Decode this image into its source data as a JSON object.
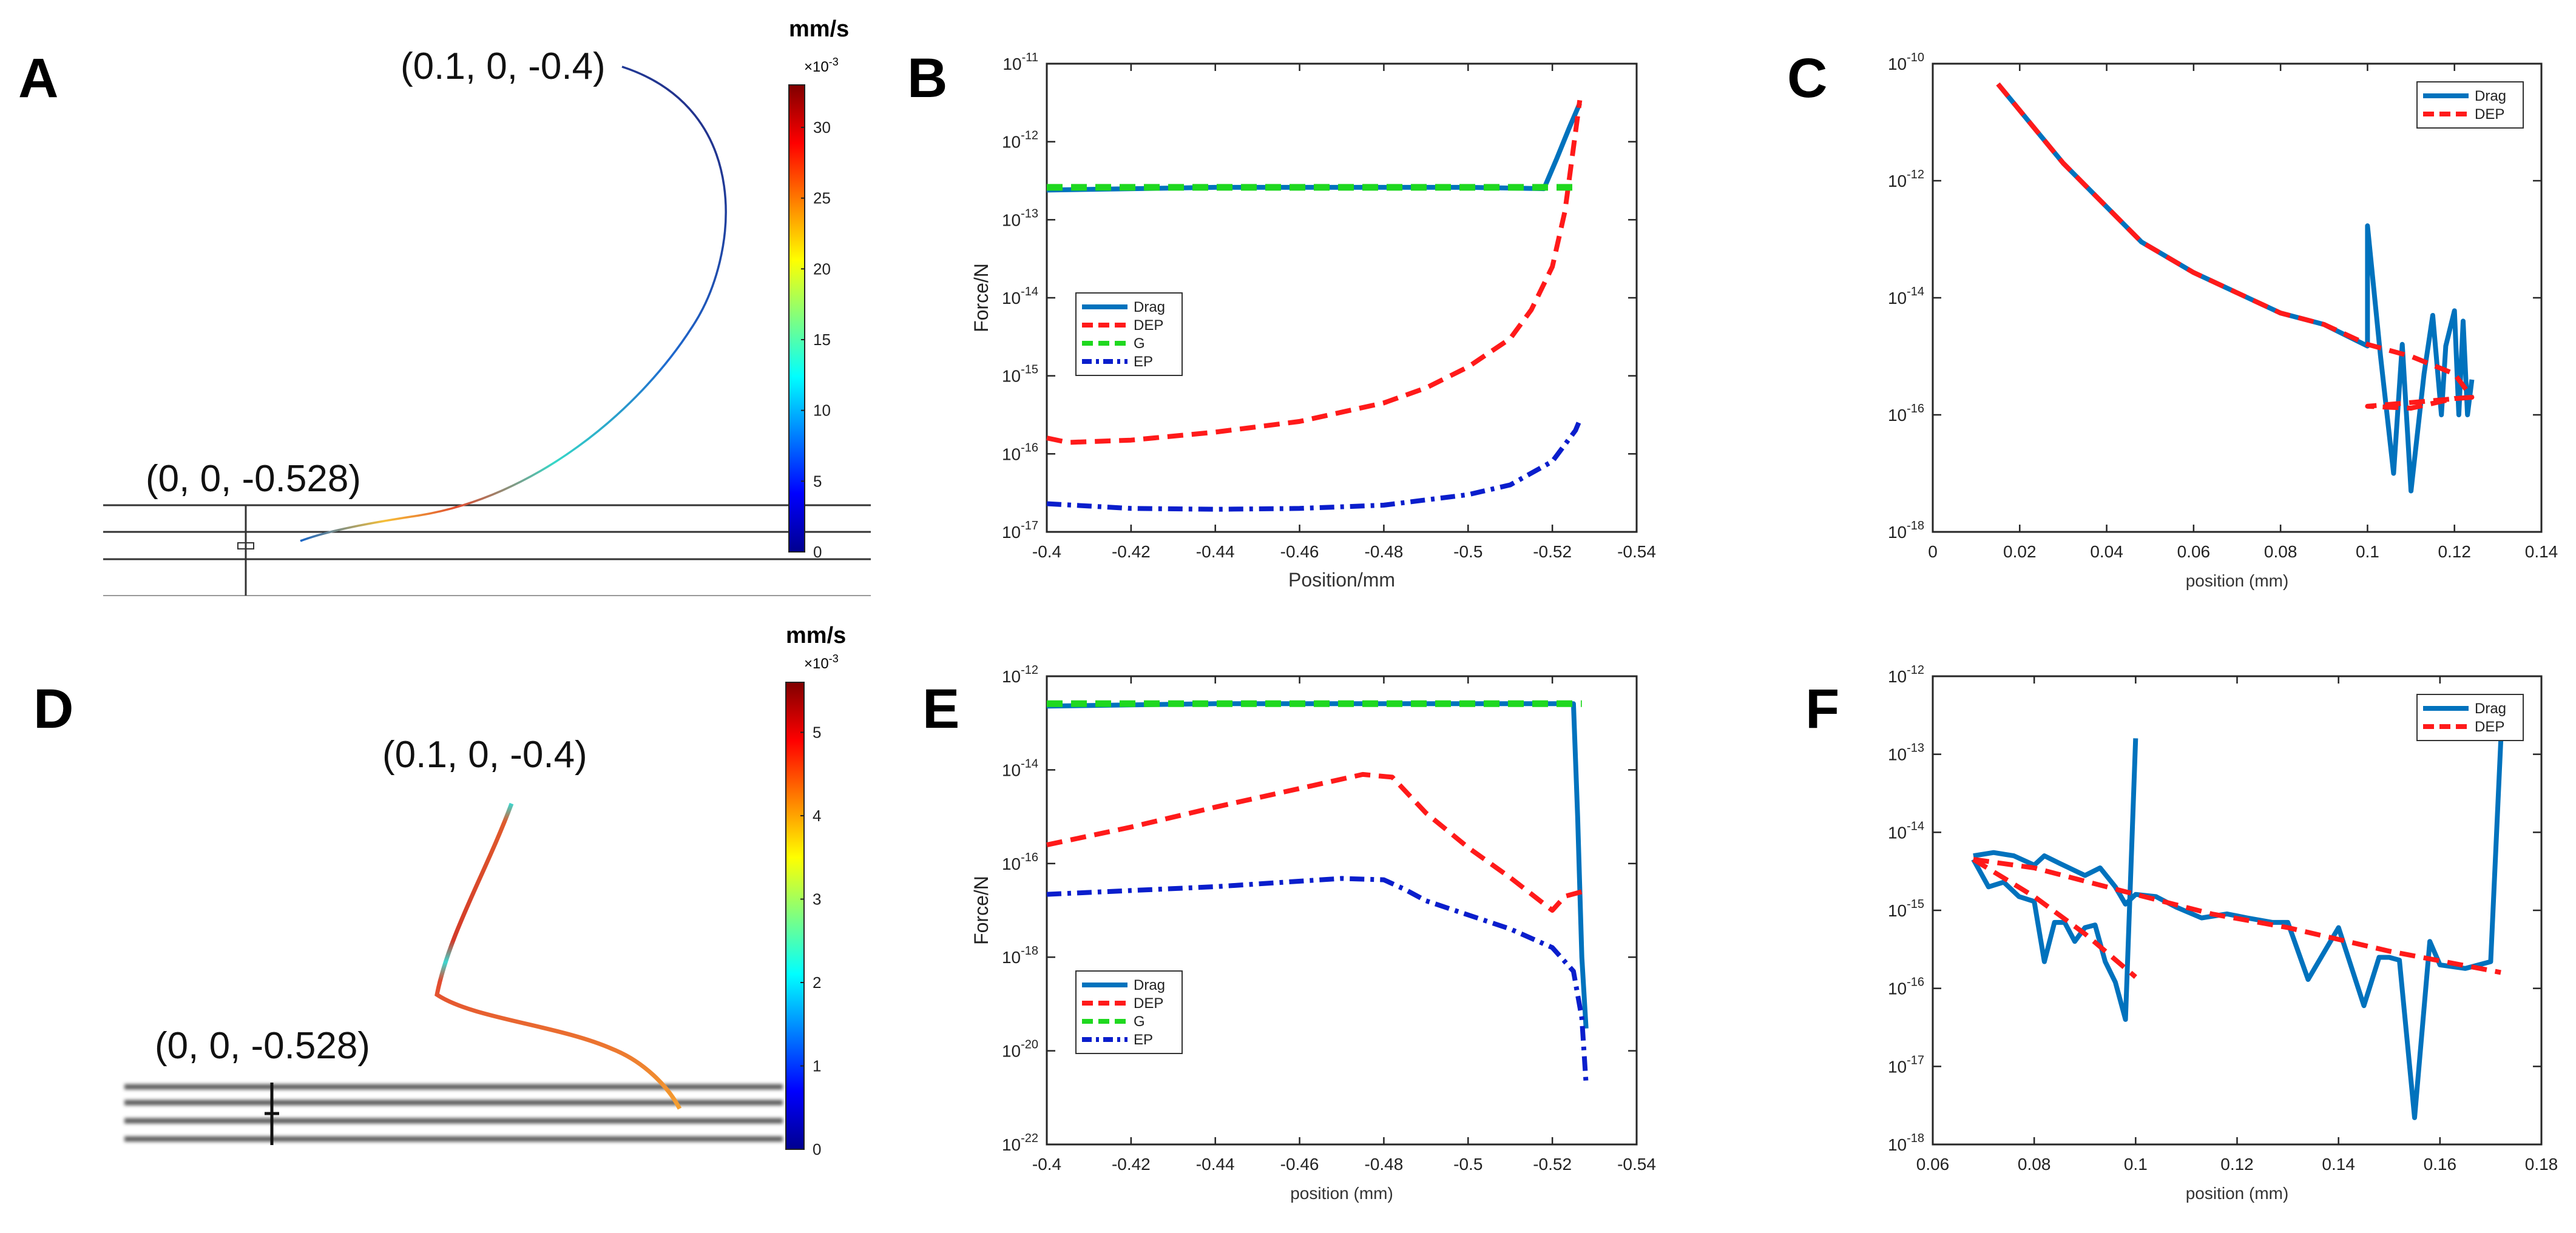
{
  "panels": {
    "A": {
      "letter": "A",
      "start_label": "(0.1, 0, -0.4)",
      "end_label": "(0, 0, -0.528)",
      "colorbar": {
        "unit": "mm/s",
        "scale": "×10",
        "scale_exp": "-3",
        "ticks": [
          "0",
          "5",
          "10",
          "15",
          "20",
          "25",
          "30"
        ],
        "max": 33
      }
    },
    "D": {
      "letter": "D",
      "start_label": "(0.1, 0, -0.4)",
      "end_label": "(0, 0, -0.528)",
      "colorbar": {
        "unit": "mm/s",
        "scale": "×10",
        "scale_exp": "-3",
        "ticks": [
          "0",
          "1",
          "2",
          "3",
          "4",
          "5"
        ],
        "max": 5.6
      }
    }
  },
  "colors": {
    "drag": "#0072BD",
    "dep": "#FF1A1A",
    "g": "#1FD81F",
    "ep": "#0A1ECC",
    "axis": "#262626",
    "grid_line": "#333333"
  },
  "chart_data": [
    {
      "panel": "B",
      "type": "line",
      "xlabel": "Position/mm",
      "ylabel": "Force/N",
      "xlim": [
        -0.4,
        -0.54
      ],
      "x_ticks": [
        "-0.4",
        "-0.42",
        "-0.44",
        "-0.46",
        "-0.48",
        "-0.5",
        "-0.52",
        "-0.54"
      ],
      "ylog": [
        -17,
        -11
      ],
      "y_tick_exps": [
        "-17",
        "-16",
        "-15",
        "-14",
        "-13",
        "-12",
        "-11"
      ],
      "legend": "left",
      "series": [
        {
          "name": "Drag",
          "style": "solid",
          "color": "#0072BD",
          "x": [
            -0.4,
            -0.44,
            -0.48,
            -0.5,
            -0.518,
            -0.521,
            -0.524,
            -0.5265
          ],
          "y": [
            2.4e-13,
            2.6e-13,
            2.6e-13,
            2.6e-13,
            2.5e-13,
            6e-13,
            1.5e-12,
            3.1e-12
          ]
        },
        {
          "name": "DEP",
          "style": "dashed",
          "color": "#FF1A1A",
          "x": [
            -0.4,
            -0.405,
            -0.42,
            -0.44,
            -0.46,
            -0.48,
            -0.49,
            -0.5,
            -0.51,
            -0.515,
            -0.52,
            -0.523,
            -0.5265
          ],
          "y": [
            1.6e-16,
            1.4e-16,
            1.5e-16,
            1.9e-16,
            2.6e-16,
            4.5e-16,
            7e-16,
            1.3e-15,
            3e-15,
            7e-15,
            2.5e-14,
            1.3e-13,
            3.4e-12
          ]
        },
        {
          "name": "G",
          "style": "dashed",
          "color": "#1FD81F",
          "x": [
            -0.4,
            -0.5265
          ],
          "y": [
            2.6e-13,
            2.6e-13
          ]
        },
        {
          "name": "EP",
          "style": "dashdot",
          "color": "#0A1ECC",
          "x": [
            -0.4,
            -0.42,
            -0.44,
            -0.46,
            -0.48,
            -0.5,
            -0.51,
            -0.52,
            -0.5255,
            -0.5265
          ],
          "y": [
            2.3e-17,
            2e-17,
            1.95e-17,
            2e-17,
            2.2e-17,
            3e-17,
            4e-17,
            8e-17,
            2e-16,
            2.7e-16
          ]
        }
      ]
    },
    {
      "panel": "C",
      "type": "line",
      "xlabel": "position (mm)",
      "ylabel": "",
      "xlim": [
        0,
        0.14
      ],
      "x_ticks": [
        "0",
        "0.02",
        "0.04",
        "0.06",
        "0.08",
        "0.1",
        "0.12",
        "0.14"
      ],
      "ylog": [
        -18,
        -10
      ],
      "y_tick_exps": [
        "-18",
        "-16",
        "-14",
        "-12",
        "-10"
      ],
      "legend": "top-right",
      "series": [
        {
          "name": "Drag",
          "style": "solid",
          "color": "#0072BD",
          "x": [
            0.015,
            0.03,
            0.048,
            0.06,
            0.08,
            0.09,
            0.1,
            0.1,
            0.103,
            0.106,
            0.108,
            0.11,
            0.113,
            0.115,
            0.117,
            0.118,
            0.12,
            0.121,
            0.122,
            0.123,
            0.124
          ],
          "y": [
            4.5e-11,
            2e-12,
            9e-14,
            2.7e-14,
            5.5e-15,
            3.5e-15,
            1.5e-15,
            1.7e-13,
            1e-15,
            1e-17,
            1.6e-15,
            5e-18,
            5e-16,
            5e-15,
            1e-16,
            1.5e-15,
            6e-15,
            1e-16,
            4e-15,
            1e-16,
            4e-16
          ]
        },
        {
          "name": "DEP",
          "style": "dashed",
          "color": "#FF1A1A",
          "x": [
            0.015,
            0.03,
            0.048,
            0.06,
            0.08,
            0.09,
            0.1,
            0.11,
            0.12,
            0.124,
            0.1,
            0.11,
            0.12,
            0.124
          ],
          "y": [
            4.5e-11,
            2e-12,
            9e-14,
            2.7e-14,
            5.5e-15,
            3.5e-15,
            1.6e-15,
            1e-15,
            5e-16,
            2e-16,
            1.4e-16,
            1.3e-16,
            1.9e-16,
            2e-16
          ]
        }
      ]
    },
    {
      "panel": "E",
      "type": "line",
      "xlabel": "position (mm)",
      "ylabel": "Force/N",
      "xlim": [
        -0.4,
        -0.54
      ],
      "x_ticks": [
        "-0.4",
        "-0.42",
        "-0.44",
        "-0.46",
        "-0.48",
        "-0.5",
        "-0.52",
        "-0.54"
      ],
      "ylog": [
        -22,
        -12
      ],
      "y_tick_exps": [
        "-22",
        "-20",
        "-18",
        "-16",
        "-14",
        "-12"
      ],
      "legend": "bottom-left",
      "series": [
        {
          "name": "Drag",
          "style": "solid",
          "color": "#0072BD",
          "x": [
            -0.4,
            -0.44,
            -0.48,
            -0.5,
            -0.525,
            -0.526,
            -0.527,
            -0.528
          ],
          "y": [
            2.3e-13,
            2.6e-13,
            2.6e-13,
            2.6e-13,
            2.6e-13,
            1e-15,
            1e-18,
            3e-20
          ]
        },
        {
          "name": "DEP",
          "style": "dashed",
          "color": "#FF1A1A",
          "x": [
            -0.4,
            -0.42,
            -0.44,
            -0.46,
            -0.475,
            -0.482,
            -0.49,
            -0.5,
            -0.51,
            -0.52,
            -0.523,
            -0.527
          ],
          "y": [
            2.5e-16,
            6e-16,
            1.6e-15,
            4e-15,
            8e-15,
            7e-15,
            1.2e-15,
            2.2e-16,
            5e-17,
            1e-17,
            2e-17,
            2.5e-17
          ]
        },
        {
          "name": "G",
          "style": "dashed",
          "color": "#1FD81F",
          "x": [
            -0.4,
            -0.527
          ],
          "y": [
            2.6e-13,
            2.6e-13
          ]
        },
        {
          "name": "EP",
          "style": "dashdot",
          "color": "#0A1ECC",
          "x": [
            -0.4,
            -0.44,
            -0.47,
            -0.48,
            -0.485,
            -0.49,
            -0.5,
            -0.51,
            -0.52,
            -0.525,
            -0.527,
            -0.528
          ],
          "y": [
            2.2e-17,
            3.2e-17,
            4.8e-17,
            4.5e-17,
            2.8e-17,
            1.6e-17,
            8e-18,
            4e-18,
            1.6e-18,
            5e-19,
            5e-20,
            2e-21
          ]
        }
      ]
    },
    {
      "panel": "F",
      "type": "line",
      "xlabel": "position (mm)",
      "ylabel": "",
      "xlim": [
        0.06,
        0.18
      ],
      "x_ticks": [
        "0.06",
        "0.08",
        "0.1",
        "0.12",
        "0.14",
        "0.16",
        "0.18"
      ],
      "ylog": [
        -18,
        -12
      ],
      "y_tick_exps": [
        "-18",
        "-17",
        "-16",
        "-15",
        "-14",
        "-13",
        "-12"
      ],
      "legend": "top-right",
      "series": [
        {
          "name": "Drag",
          "style": "solid",
          "color": "#0072BD",
          "x": [
            0.068,
            0.072,
            0.076,
            0.08,
            0.082,
            0.085,
            0.09,
            0.093,
            0.096,
            0.098,
            0.1,
            0.104,
            0.108,
            0.113,
            0.118,
            0.122,
            0.127,
            0.13,
            0.134,
            0.14,
            0.145,
            0.148,
            0.15,
            0.152,
            0.155,
            0.158,
            0.16,
            0.165,
            0.17,
            0.172
          ],
          "y": [
            5e-15,
            5.5e-15,
            5e-15,
            3.8e-15,
            5e-15,
            4e-15,
            2.8e-15,
            3.5e-15,
            2e-15,
            1.2e-15,
            1.6e-15,
            1.5e-15,
            1.1e-15,
            8e-16,
            9e-16,
            8e-16,
            7e-16,
            7e-16,
            1.3e-16,
            6e-16,
            6e-17,
            2.5e-16,
            2.5e-16,
            2.3e-16,
            2.2e-18,
            4e-16,
            2e-16,
            1.8e-16,
            2.2e-16,
            1.5e-13
          ]
        },
        {
          "name": "Drag",
          "style": "solid",
          "color": "#0072BD",
          "x": [
            0.068,
            0.071,
            0.074,
            0.077,
            0.08,
            0.082,
            0.084,
            0.086,
            0.088,
            0.09,
            0.092,
            0.094,
            0.096,
            0.098,
            0.1
          ],
          "y": [
            4.5e-15,
            2e-15,
            2.3e-15,
            1.5e-15,
            1.3e-15,
            2.2e-16,
            7e-16,
            7e-16,
            4e-16,
            6e-16,
            6.5e-16,
            2.2e-16,
            1.2e-16,
            4e-17,
            1.6e-13
          ]
        },
        {
          "name": "DEP",
          "style": "dashed",
          "color": "#FF1A1A",
          "x": [
            0.068,
            0.08,
            0.1,
            0.115,
            0.13,
            0.15,
            0.172
          ],
          "y": [
            4.5e-15,
            3.5e-15,
            1.6e-15,
            9e-16,
            6e-16,
            3e-16,
            1.6e-16
          ]
        },
        {
          "name": "DEP",
          "style": "dashed",
          "color": "#FF1A1A",
          "x": [
            0.068,
            0.08,
            0.09,
            0.1
          ],
          "y": [
            4.5e-15,
            1.5e-15,
            5e-16,
            1.4e-16
          ]
        }
      ]
    }
  ]
}
